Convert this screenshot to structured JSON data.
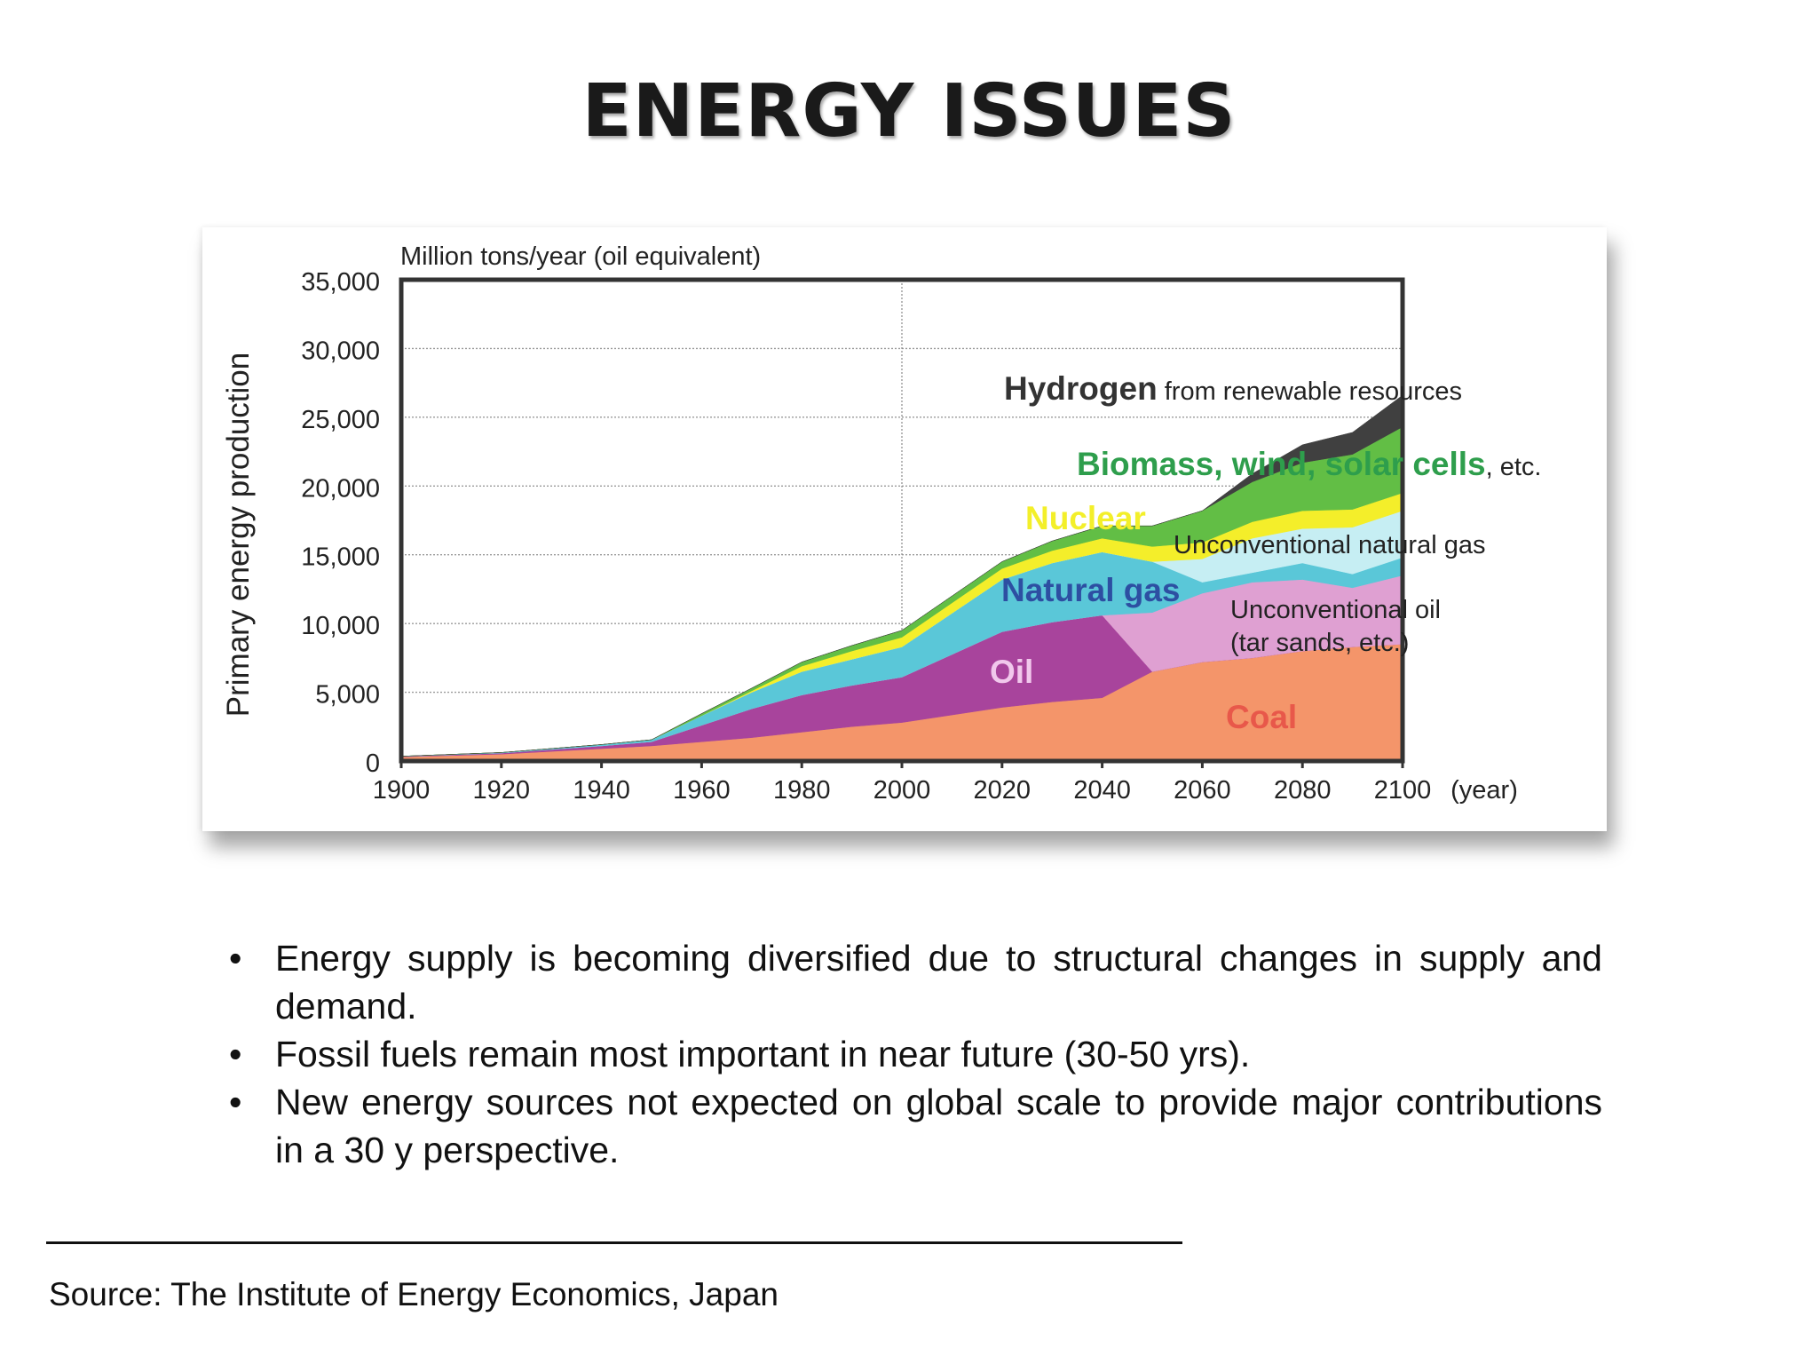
{
  "slide": {
    "title": "ENERGY ISSUES",
    "bullets": [
      "Energy supply is becoming diversified due to structural changes in supply and demand.",
      "Fossil fuels remain most important in near future (30-50 yrs).",
      "New energy sources not expected on global scale to provide major contributions in a 30 y perspective."
    ],
    "bullet_glyph": "•",
    "source": "Source: The Institute of Energy Economics, Japan"
  },
  "chart_data": {
    "type": "area",
    "stacked": true,
    "ylabel": "Primary energy production",
    "unit_label": "Million tons/year (oil equivalent)",
    "xunit": "(year)",
    "xlim": [
      1900,
      2100
    ],
    "ylim": [
      0,
      35000
    ],
    "xticks": [
      1900,
      1920,
      1940,
      1960,
      1980,
      2000,
      2020,
      2040,
      2060,
      2080,
      2100
    ],
    "yticks": [
      0,
      5000,
      10000,
      15000,
      20000,
      25000,
      30000,
      35000
    ],
    "ytick_labels": [
      "0",
      "5,000",
      "10,000",
      "15,000",
      "20,000",
      "25,000",
      "30,000",
      "35,000"
    ],
    "grid": "horizontal dotted",
    "reference_line_x": 2000,
    "x": [
      1900,
      1920,
      1940,
      1950,
      1960,
      1970,
      1980,
      1990,
      2000,
      2020,
      2030,
      2040,
      2050,
      2060,
      2070,
      2080,
      2090,
      2100
    ],
    "series": [
      {
        "key": "coal",
        "color": "#f4956a",
        "values": [
          300,
          500,
          900,
          1100,
          1400,
          1700,
          2100,
          2500,
          2800,
          3900,
          4300,
          4600,
          6500,
          7200,
          7500,
          8000,
          8300,
          8500
        ]
      },
      {
        "key": "oil",
        "color": "#a8449c",
        "values": [
          30,
          80,
          200,
          300,
          1200,
          2100,
          2700,
          3000,
          3300,
          5500,
          5800,
          6000,
          0,
          0,
          0,
          0,
          0,
          0
        ]
      },
      {
        "key": "unconventional_oil",
        "color": "#dfa0d2",
        "values": [
          0,
          0,
          0,
          0,
          0,
          0,
          0,
          0,
          0,
          0,
          0,
          0,
          4300,
          5000,
          5500,
          5200,
          4300,
          5000
        ]
      },
      {
        "key": "natural_gas",
        "color": "#5ac7d8",
        "values": [
          20,
          40,
          100,
          150,
          700,
          1200,
          1700,
          1900,
          2200,
          3800,
          4300,
          4600,
          3700,
          800,
          700,
          1200,
          1000,
          1300
        ]
      },
      {
        "key": "unconventional_natural_gas",
        "color": "#c6eef3",
        "values": [
          0,
          0,
          0,
          0,
          0,
          0,
          0,
          0,
          0,
          0,
          0,
          0,
          0,
          1700,
          2500,
          2500,
          3400,
          3400
        ]
      },
      {
        "key": "nuclear",
        "color": "#f4ee2a",
        "values": [
          0,
          0,
          0,
          0,
          0,
          100,
          400,
          600,
          700,
          800,
          900,
          1000,
          1100,
          1200,
          1200,
          1300,
          1300,
          1300
        ]
      },
      {
        "key": "biomass_wind_solar",
        "color": "#62be45",
        "values": [
          0,
          0,
          0,
          0,
          150,
          200,
          300,
          400,
          500,
          500,
          700,
          900,
          1500,
          2300,
          2900,
          3500,
          4000,
          4800
        ]
      },
      {
        "key": "hydrogen",
        "color": "#404040",
        "values": [
          0,
          0,
          0,
          0,
          0,
          0,
          0,
          0,
          0,
          0,
          0,
          0,
          0,
          0,
          600,
          1300,
          1600,
          2300
        ]
      }
    ],
    "annotations": [
      {
        "key": "hydrogen",
        "bold": "Hydrogen",
        "rest": " from renewable resources",
        "color": "#333333"
      },
      {
        "key": "biomass",
        "bold": "Biomass, wind, solar cells",
        "rest": ", etc.",
        "color": "#2e9e4c"
      },
      {
        "key": "nuclear",
        "bold": "Nuclear",
        "rest": "",
        "color": "#f3ef2a"
      },
      {
        "key": "unconv_gas",
        "bold": "",
        "rest": "Unconventional natural gas",
        "color": "#222222"
      },
      {
        "key": "natural_gas",
        "bold": "Natural gas",
        "rest": "",
        "color": "#2d4fa2"
      },
      {
        "key": "unconv_oil",
        "bold": "",
        "rest": "Unconventional oil",
        "color": "#222222"
      },
      {
        "key": "unconv_oil_2",
        "bold": "",
        "rest": "(tar sands, etc.)",
        "color": "#222222"
      },
      {
        "key": "oil",
        "bold": "Oil",
        "rest": "",
        "color": "#f1c8ec"
      },
      {
        "key": "coal",
        "bold": "Coal",
        "rest": "",
        "color": "#e8584a"
      }
    ]
  }
}
